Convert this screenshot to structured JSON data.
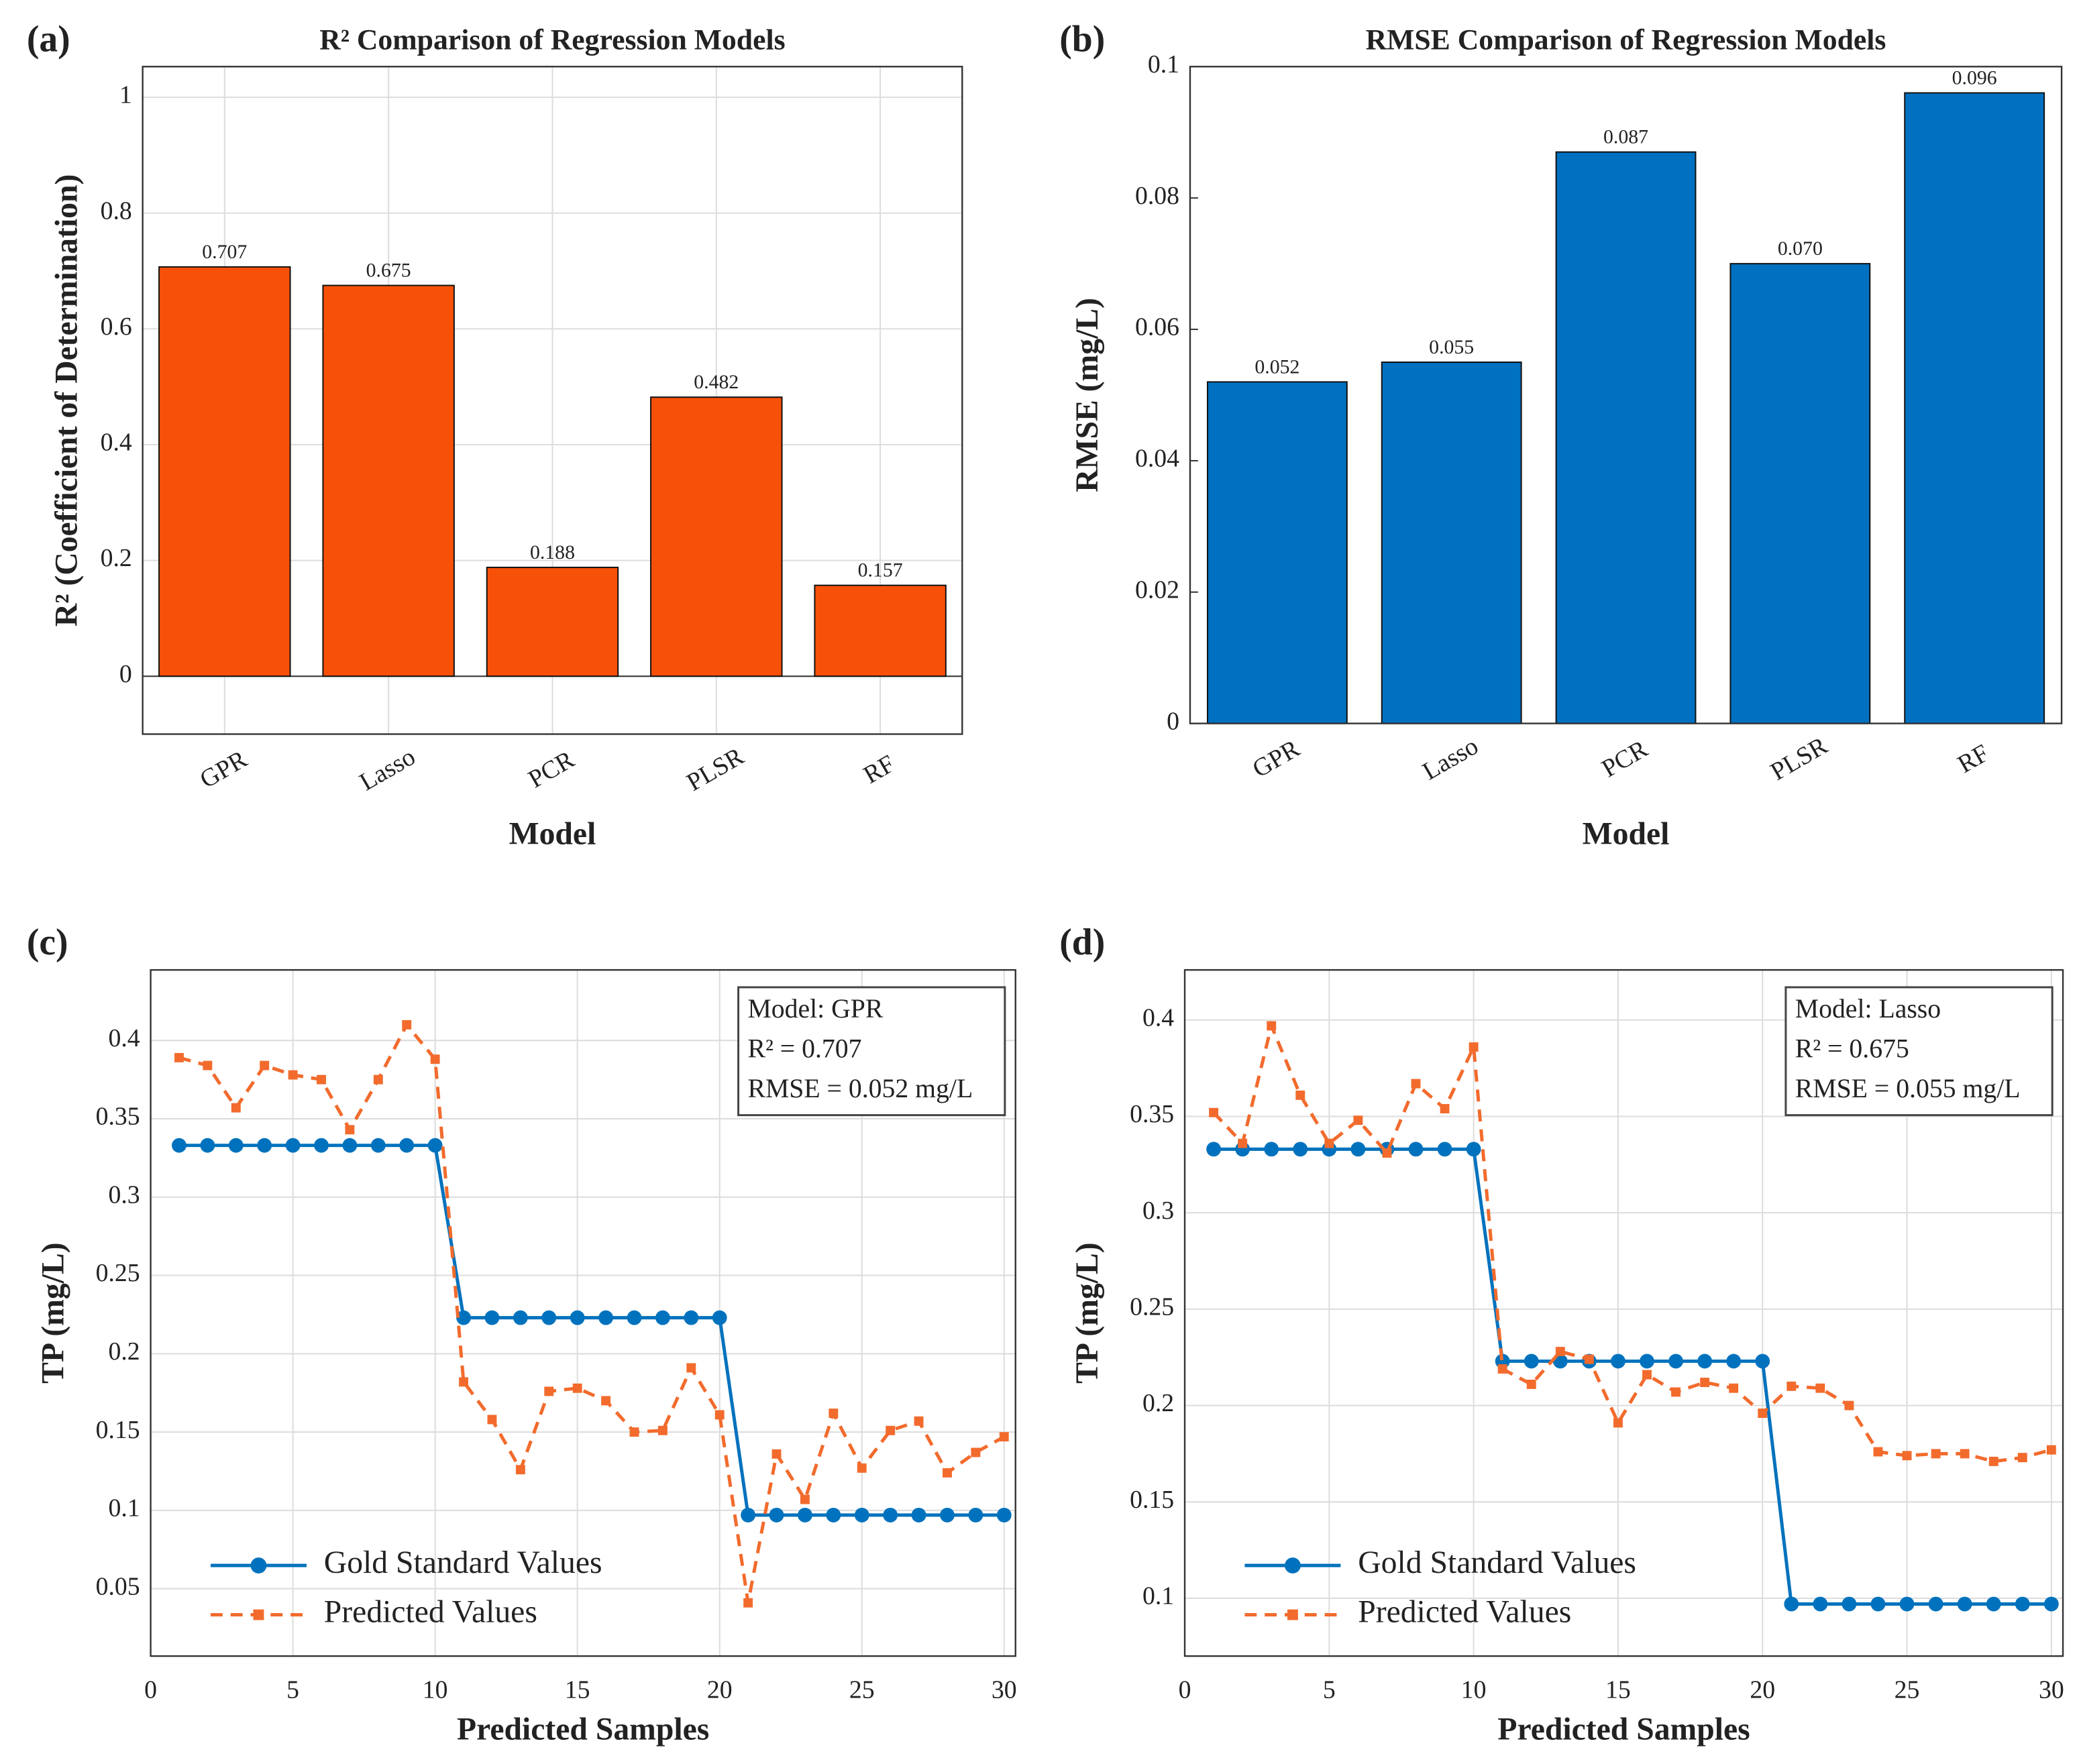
{
  "chart_data": [
    {
      "type": "bar",
      "label": "(a)",
      "title": "R² Comparison of Regression Models",
      "xlabel": "Model",
      "ylabel": "R² (Coefficient of Determination)",
      "categories": [
        "GPR",
        "Lasso",
        "PCR",
        "PLSR",
        "RF"
      ],
      "values": [
        0.707,
        0.675,
        0.188,
        0.482,
        0.157
      ],
      "color": "#f75109",
      "ylim": [
        -0.1,
        1.053
      ],
      "yticks": [
        0,
        0.2,
        0.4,
        0.6,
        0.8,
        1
      ],
      "grid": true
    },
    {
      "type": "bar",
      "label": "(b)",
      "title": "RMSE Comparison of Regression Models",
      "xlabel": "Model",
      "ylabel": "RMSE (mg/L)",
      "categories": [
        "GPR",
        "Lasso",
        "PCR",
        "PLSR",
        "RF"
      ],
      "values": [
        0.052,
        0.055,
        0.087,
        0.07,
        0.096
      ],
      "value_labels": [
        "0.052",
        "0.055",
        "0.087",
        "0.070",
        "0.096"
      ],
      "color": "#0070c0",
      "ylim": [
        0,
        0.1
      ],
      "yticks": [
        0,
        0.02,
        0.04,
        0.06,
        0.08,
        0.1
      ],
      "grid": false
    },
    {
      "type": "line",
      "label": "(c)",
      "xlabel": "Predicted Samples",
      "ylabel": "TP (mg/L)",
      "x": [
        1,
        2,
        3,
        4,
        5,
        6,
        7,
        8,
        9,
        10,
        11,
        12,
        13,
        14,
        15,
        16,
        17,
        18,
        19,
        20,
        21,
        22,
        23,
        24,
        25,
        26,
        27,
        28,
        29,
        30
      ],
      "series": [
        {
          "name": "Gold Standard Values",
          "color": "#0072bd",
          "linestyle": "solid",
          "marker": "circle",
          "values": [
            0.333,
            0.333,
            0.333,
            0.333,
            0.333,
            0.333,
            0.333,
            0.333,
            0.333,
            0.333,
            0.223,
            0.223,
            0.223,
            0.223,
            0.223,
            0.223,
            0.223,
            0.223,
            0.223,
            0.223,
            0.097,
            0.097,
            0.097,
            0.097,
            0.097,
            0.097,
            0.097,
            0.097,
            0.097,
            0.097
          ]
        },
        {
          "name": "Predicted Values",
          "color": "#f26b2d",
          "linestyle": "dashed",
          "marker": "square",
          "values": [
            0.389,
            0.384,
            0.357,
            0.384,
            0.378,
            0.375,
            0.343,
            0.375,
            0.41,
            0.388,
            0.182,
            0.158,
            0.126,
            0.176,
            0.178,
            0.17,
            0.15,
            0.151,
            0.191,
            0.161,
            0.041,
            0.136,
            0.107,
            0.162,
            0.127,
            0.151,
            0.157,
            0.124,
            0.137,
            0.147
          ]
        }
      ],
      "annotation": [
        "Model: GPR",
        "R² = 0.707",
        "RMSE = 0.052 mg/L"
      ],
      "xlim": [
        0,
        30.4
      ],
      "xticks": [
        0,
        5,
        10,
        15,
        20,
        25,
        30
      ],
      "ylim": [
        0.007,
        0.445
      ],
      "yticks": [
        0.05,
        0.1,
        0.15,
        0.2,
        0.25,
        0.3,
        0.35,
        0.4
      ],
      "grid": true,
      "legend": "lower left"
    },
    {
      "type": "line",
      "label": "(d)",
      "xlabel": "Predicted Samples",
      "ylabel": "TP (mg/L)",
      "x": [
        1,
        2,
        3,
        4,
        5,
        6,
        7,
        8,
        9,
        10,
        11,
        12,
        13,
        14,
        15,
        16,
        17,
        18,
        19,
        20,
        21,
        22,
        23,
        24,
        25,
        26,
        27,
        28,
        29,
        30
      ],
      "series": [
        {
          "name": "Gold Standard Values",
          "color": "#0072bd",
          "linestyle": "solid",
          "marker": "circle",
          "values": [
            0.333,
            0.333,
            0.333,
            0.333,
            0.333,
            0.333,
            0.333,
            0.333,
            0.333,
            0.333,
            0.223,
            0.223,
            0.223,
            0.223,
            0.223,
            0.223,
            0.223,
            0.223,
            0.223,
            0.223,
            0.097,
            0.097,
            0.097,
            0.097,
            0.097,
            0.097,
            0.097,
            0.097,
            0.097,
            0.097
          ]
        },
        {
          "name": "Predicted Values",
          "color": "#f26b2d",
          "linestyle": "dashed",
          "marker": "square",
          "values": [
            0.352,
            0.336,
            0.397,
            0.361,
            0.336,
            0.348,
            0.331,
            0.367,
            0.354,
            0.386,
            0.219,
            0.211,
            0.228,
            0.224,
            0.191,
            0.216,
            0.207,
            0.212,
            0.209,
            0.196,
            0.21,
            0.209,
            0.2,
            0.176,
            0.174,
            0.175,
            0.175,
            0.171,
            0.173,
            0.177
          ]
        }
      ],
      "annotation": [
        "Model: Lasso",
        "R² = 0.675",
        "RMSE = 0.055 mg/L"
      ],
      "xlim": [
        0,
        30.4
      ],
      "xticks": [
        0,
        5,
        10,
        15,
        20,
        25,
        30
      ],
      "ylim": [
        0.07,
        0.426
      ],
      "yticks": [
        0.1,
        0.15,
        0.2,
        0.25,
        0.3,
        0.35,
        0.4
      ],
      "grid": true,
      "legend": "lower left"
    }
  ]
}
